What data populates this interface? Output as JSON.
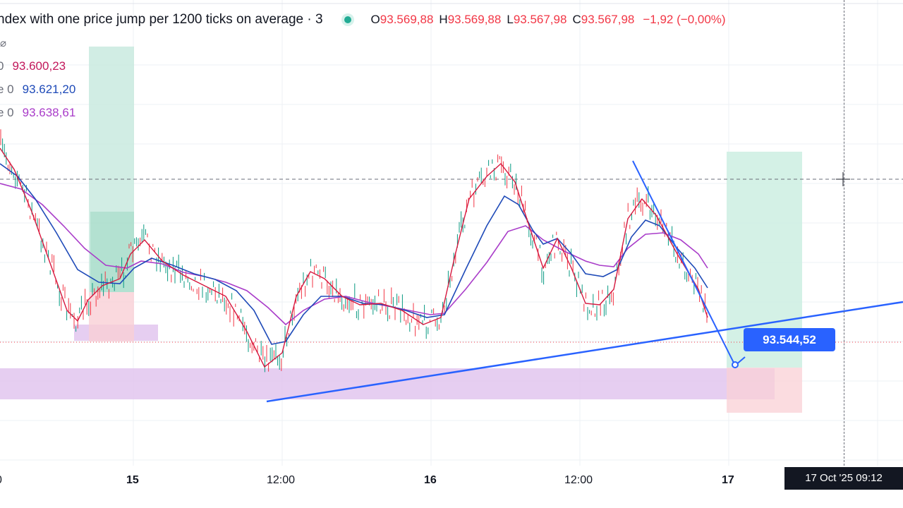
{
  "header": {
    "title": "ndex with one price jump per 1200 ticks on average · 3",
    "status_color": "#22ab94",
    "open_key": "O",
    "open": "93.569,88",
    "high_key": "H",
    "high": "93.569,88",
    "low_key": "L",
    "low": "93.567,98",
    "close_key": "C",
    "close": "93.567,98",
    "change": "−1,92 (−0,00%)"
  },
  "legend": [
    {
      "prefix": "",
      "value": "⌀",
      "color": "#6a6d78"
    },
    {
      "prefix": "0",
      "value": "93.600,23",
      "color": "#c2185b"
    },
    {
      "prefix": "e 0",
      "value": "93.621,20",
      "color": "#1e4ab8"
    },
    {
      "prefix": "e 0",
      "value": "93.638,61",
      "color": "#a93cc9"
    }
  ],
  "price_tag": {
    "label": "93.544,52",
    "color": "#2962ff"
  },
  "xaxis": [
    {
      "label": "0",
      "bold": false
    },
    {
      "label": "15",
      "bold": true
    },
    {
      "label": "12:00",
      "bold": false
    },
    {
      "label": "16",
      "bold": true
    },
    {
      "label": "12:00",
      "bold": false
    },
    {
      "label": "17",
      "bold": true
    }
  ],
  "crosshair_date": "17 Oct '25   09:12",
  "colors": {
    "fast_ma": "#d6173e",
    "mid_ma": "#1e4ab8",
    "slow_ma": "#a93cc9",
    "trendline": "#2962ff",
    "candle_up": "#089981",
    "candle_down": "#f23645"
  }
}
